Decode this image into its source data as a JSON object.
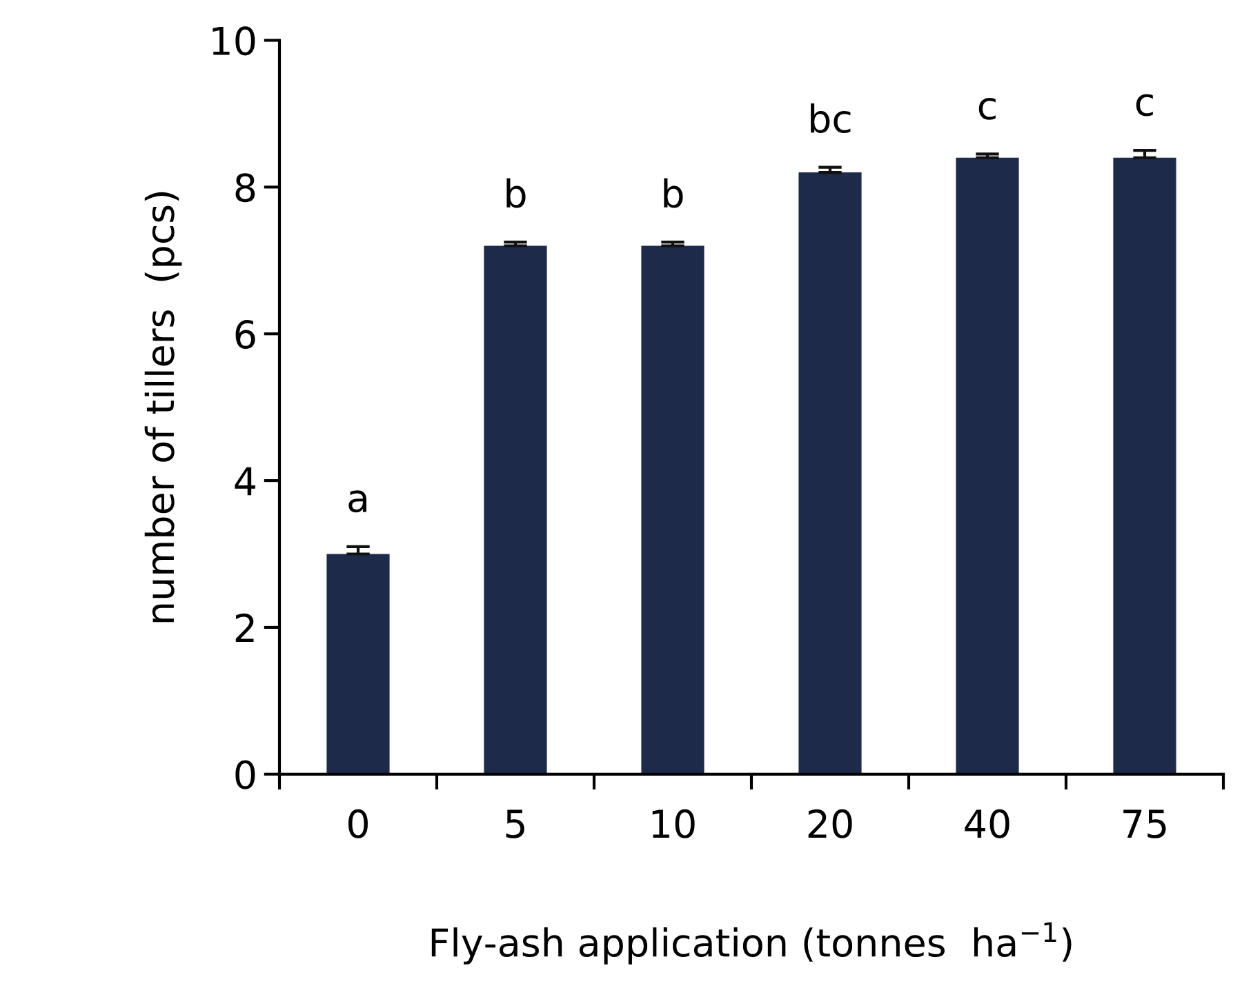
{
  "chart_data": {
    "type": "bar",
    "xlabel": "Fly-ash application (tonnes  ha$^{−1}$)",
    "ylabel": "number of tillers  (pcs)",
    "categories": [
      "0",
      "5",
      "10",
      "20",
      "40",
      "75"
    ],
    "values": [
      3.0,
      7.2,
      7.2,
      8.2,
      8.4,
      8.4
    ],
    "errors": [
      0.1,
      0.05,
      0.05,
      0.07,
      0.05,
      0.1
    ],
    "color": "#1e2a4a",
    "ylim": [
      0,
      10
    ],
    "yticks": [
      0,
      2,
      4,
      6,
      8,
      10
    ],
    "grid": false,
    "annotations": [
      {
        "text": "a",
        "x": "0",
        "y": 3.1
      },
      {
        "text": "b",
        "x": "5",
        "y": 7.25
      },
      {
        "text": "b",
        "x": "10",
        "y": 7.25
      },
      {
        "text": "bc",
        "x": "20",
        "y": 8.27
      },
      {
        "text": "c",
        "x": "40",
        "y": 8.45
      },
      {
        "text": "c",
        "x": "75",
        "y": 8.5
      }
    ]
  }
}
